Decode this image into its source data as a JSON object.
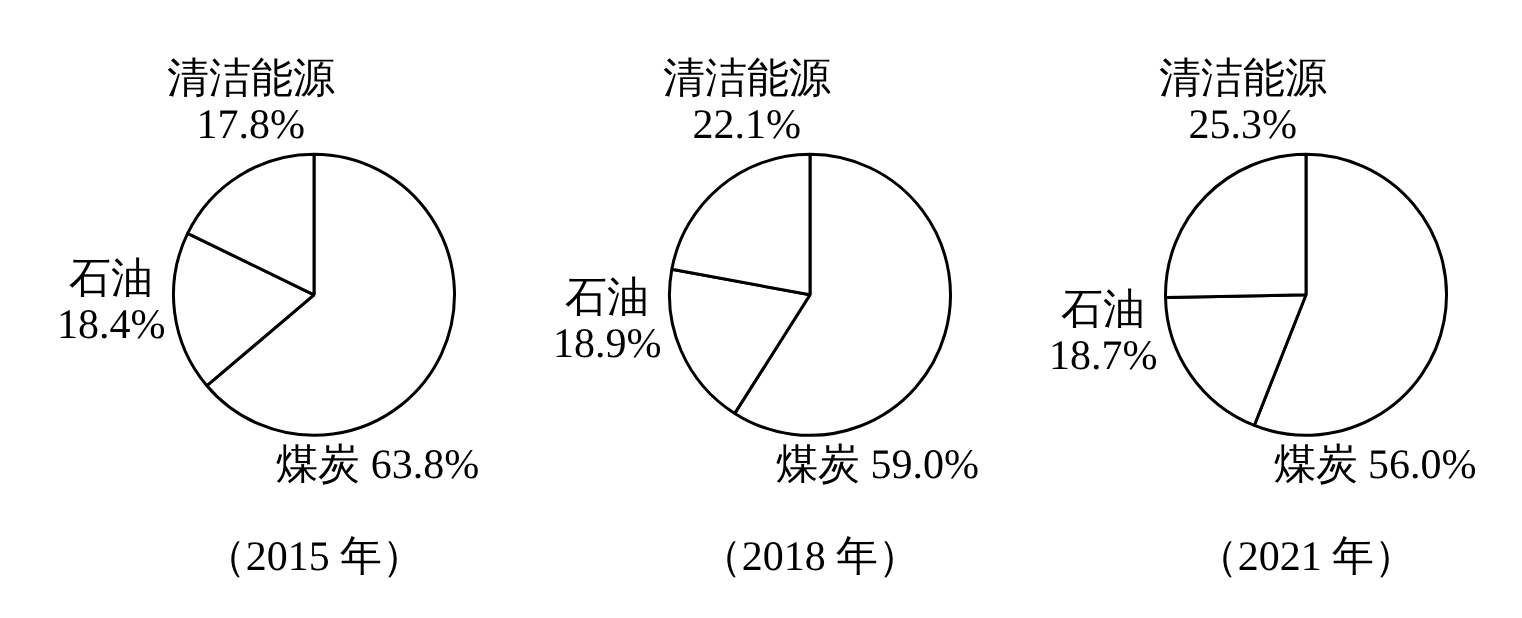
{
  "chart_data": [
    {
      "type": "pie",
      "title": "（2015 年）",
      "categories": [
        "煤炭",
        "石油",
        "清洁能源"
      ],
      "values": [
        63.8,
        18.4,
        17.8
      ],
      "value_labels": [
        "63.8%",
        "18.4%",
        "17.8%"
      ],
      "colors": [
        "#ffffff",
        "#ffffff",
        "#ffffff"
      ]
    },
    {
      "type": "pie",
      "title": "（2018 年）",
      "categories": [
        "煤炭",
        "石油",
        "清洁能源"
      ],
      "values": [
        59.0,
        18.9,
        22.1
      ],
      "value_labels": [
        "59.0%",
        "18.9%",
        "22.1%"
      ],
      "colors": [
        "#ffffff",
        "#ffffff",
        "#ffffff"
      ]
    },
    {
      "type": "pie",
      "title": "（2021 年）",
      "categories": [
        "煤炭",
        "石油",
        "清洁能源"
      ],
      "values": [
        56.0,
        18.7,
        25.3
      ],
      "value_labels": [
        "56.0%",
        "18.7%",
        "25.3%"
      ],
      "colors": [
        "#ffffff",
        "#ffffff",
        "#ffffff"
      ]
    }
  ]
}
